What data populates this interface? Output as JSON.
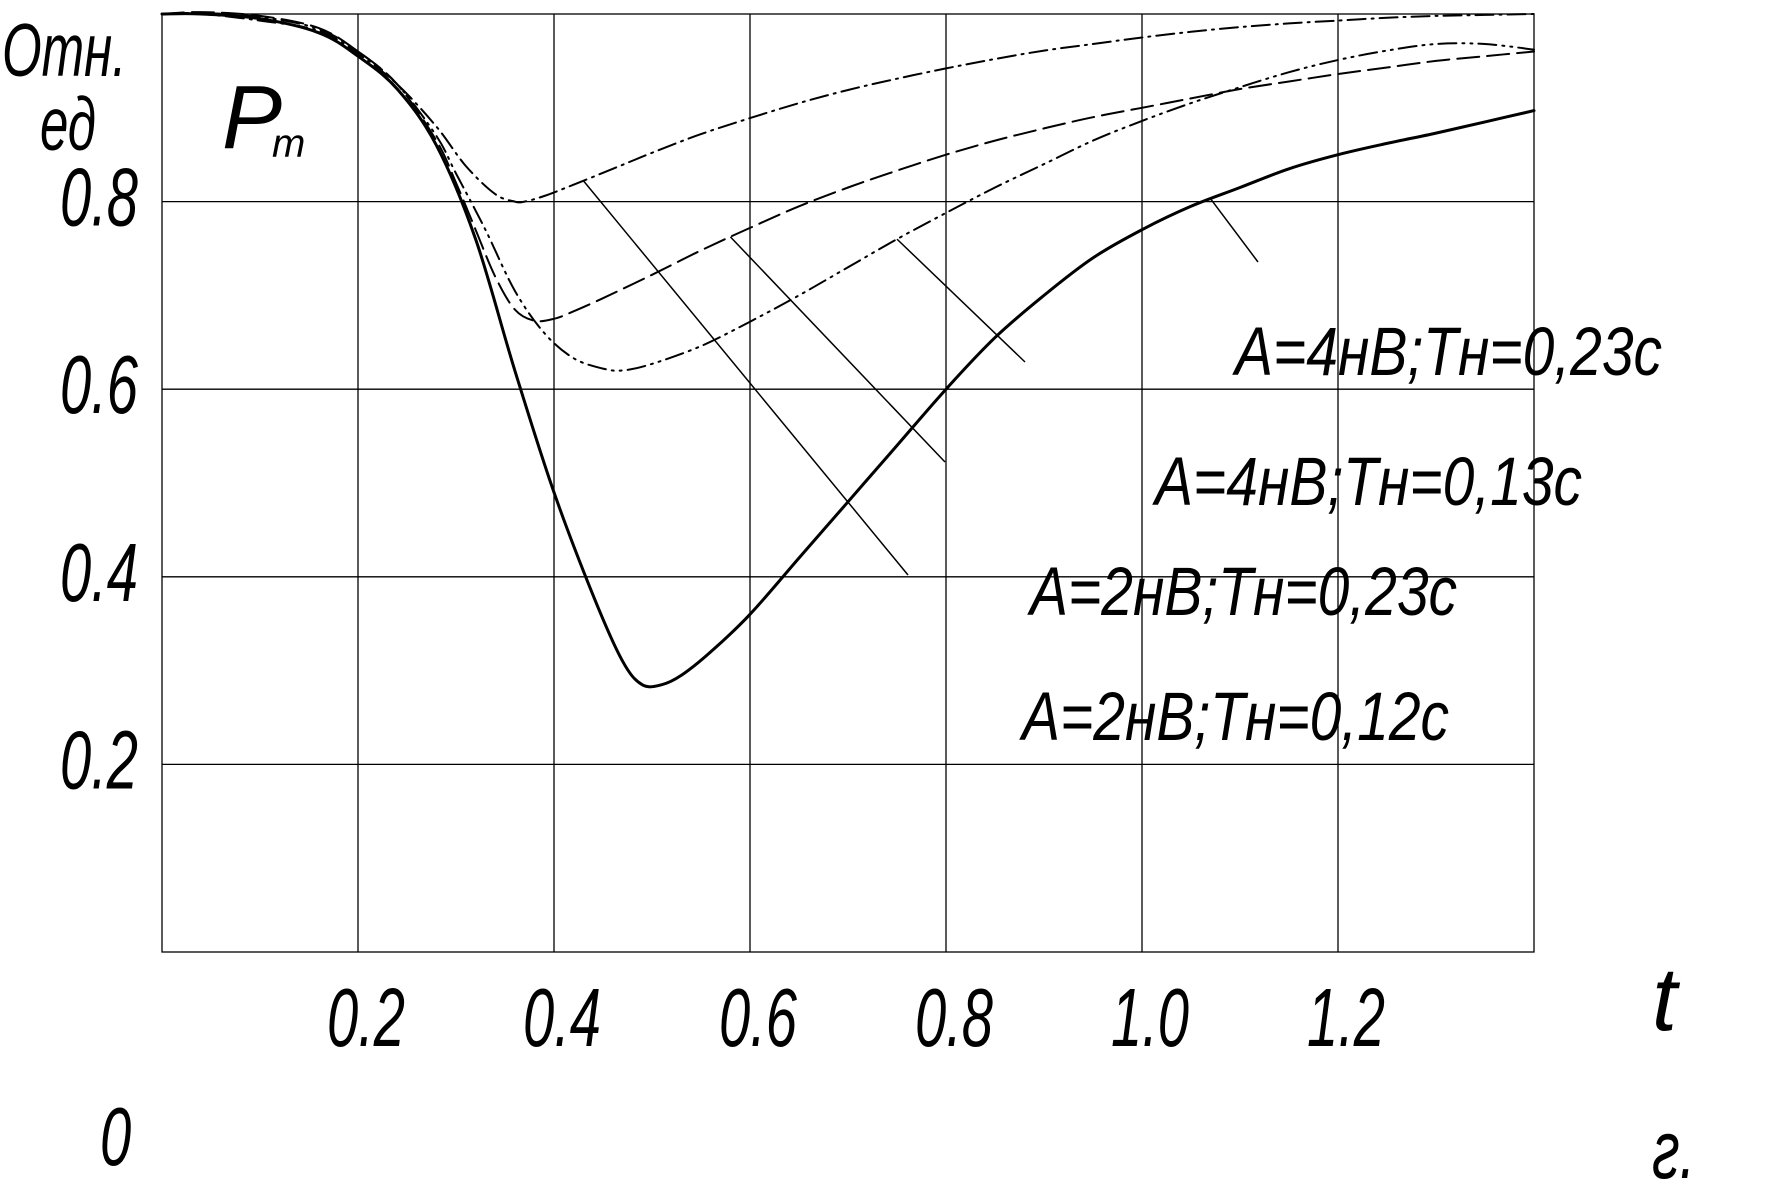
{
  "chart_data": {
    "type": "line",
    "ylabel_line1": "Отн.",
    "ylabel_line2": "ед",
    "title_main": "P",
    "title_sub": "т",
    "xlabel": "t",
    "xunit": "г.",
    "origin_label": "0",
    "xlim": [
      0,
      1.4
    ],
    "ylim": [
      0,
      1.0
    ],
    "grid": true,
    "x_ticks": [
      {
        "value": 0.2,
        "label": "0.2"
      },
      {
        "value": 0.4,
        "label": "0.4"
      },
      {
        "value": 0.6,
        "label": "0.6"
      },
      {
        "value": 0.8,
        "label": "0.8"
      },
      {
        "value": 1.0,
        "label": "1.0"
      },
      {
        "value": 1.2,
        "label": "1.2"
      }
    ],
    "y_ticks": [
      {
        "value": 0.2,
        "label": "0.2"
      },
      {
        "value": 0.4,
        "label": "0.4"
      },
      {
        "value": 0.6,
        "label": "0.6"
      },
      {
        "value": 0.8,
        "label": "0.8"
      }
    ],
    "series": [
      {
        "name": "A=2нВ;Tн=0,12с",
        "style": "solid",
        "x": [
          0,
          0.04,
          0.1,
          0.16,
          0.2,
          0.24,
          0.28,
          0.32,
          0.36,
          0.4,
          0.44,
          0.47,
          0.49,
          0.51,
          0.53,
          0.56,
          0.6,
          0.65,
          0.7,
          0.75,
          0.8,
          0.85,
          0.9,
          0.95,
          1.0,
          1.05,
          1.1,
          1.15,
          1.2,
          1.25,
          1.3,
          1.35,
          1.4
        ],
        "y": [
          1.0,
          1.0,
          0.995,
          0.98,
          0.955,
          0.92,
          0.86,
          0.76,
          0.62,
          0.49,
          0.38,
          0.31,
          0.285,
          0.285,
          0.295,
          0.32,
          0.36,
          0.42,
          0.48,
          0.54,
          0.6,
          0.655,
          0.7,
          0.74,
          0.77,
          0.795,
          0.815,
          0.835,
          0.85,
          0.862,
          0.873,
          0.885,
          0.897
        ]
      },
      {
        "name": "A=2нВ;Tн=0,23с",
        "style": "dashed",
        "x": [
          0,
          0.04,
          0.1,
          0.16,
          0.2,
          0.24,
          0.28,
          0.3,
          0.32,
          0.34,
          0.36,
          0.38,
          0.4,
          0.42,
          0.45,
          0.5,
          0.55,
          0.6,
          0.65,
          0.7,
          0.75,
          0.8,
          0.85,
          0.9,
          0.95,
          1.0,
          1.05,
          1.1,
          1.15,
          1.2,
          1.25,
          1.3,
          1.35,
          1.4
        ],
        "y": [
          1.0,
          1.002,
          0.998,
          0.985,
          0.96,
          0.925,
          0.865,
          0.82,
          0.77,
          0.72,
          0.685,
          0.673,
          0.675,
          0.683,
          0.697,
          0.722,
          0.748,
          0.772,
          0.795,
          0.815,
          0.833,
          0.85,
          0.865,
          0.878,
          0.89,
          0.9,
          0.91,
          0.92,
          0.928,
          0.936,
          0.943,
          0.95,
          0.955,
          0.96
        ]
      },
      {
        "name": "A=4нВ;Tн=0,13с",
        "style": "dashdotdot",
        "x": [
          0,
          0.04,
          0.1,
          0.16,
          0.2,
          0.24,
          0.28,
          0.3,
          0.33,
          0.36,
          0.39,
          0.42,
          0.45,
          0.47,
          0.5,
          0.55,
          0.6,
          0.65,
          0.7,
          0.75,
          0.8,
          0.85,
          0.9,
          0.95,
          1.0,
          1.05,
          1.1,
          1.15,
          1.2,
          1.25,
          1.3,
          1.35,
          1.4
        ],
        "y": [
          1.0,
          1.001,
          0.997,
          0.984,
          0.96,
          0.925,
          0.87,
          0.83,
          0.77,
          0.705,
          0.66,
          0.633,
          0.622,
          0.62,
          0.627,
          0.646,
          0.672,
          0.7,
          0.73,
          0.76,
          0.788,
          0.815,
          0.84,
          0.865,
          0.886,
          0.905,
          0.922,
          0.938,
          0.951,
          0.961,
          0.968,
          0.968,
          0.962
        ]
      },
      {
        "name": "A=4нВ;Tн=0,23с",
        "style": "dashdot",
        "x": [
          0,
          0.04,
          0.1,
          0.16,
          0.2,
          0.24,
          0.28,
          0.31,
          0.34,
          0.36,
          0.37,
          0.39,
          0.42,
          0.46,
          0.5,
          0.55,
          0.6,
          0.65,
          0.7,
          0.75,
          0.8,
          0.85,
          0.9,
          0.95,
          1.0,
          1.05,
          1.1,
          1.15,
          1.2,
          1.25,
          1.3,
          1.35,
          1.4
        ],
        "y": [
          1.0,
          1.0,
          0.993,
          0.982,
          0.958,
          0.925,
          0.88,
          0.838,
          0.808,
          0.8,
          0.8,
          0.806,
          0.818,
          0.835,
          0.852,
          0.872,
          0.889,
          0.905,
          0.919,
          0.931,
          0.942,
          0.952,
          0.961,
          0.968,
          0.975,
          0.981,
          0.986,
          0.99,
          0.993,
          0.996,
          0.998,
          0.999,
          1.0
        ]
      }
    ],
    "annotations": [
      {
        "text": "A=4нВ;Tн=0,23с",
        "series": "A=4нВ;Tн=0,23с"
      },
      {
        "text": "A=4нВ;Tн=0,13с",
        "series": "A=4нВ;Tн=0,13с"
      },
      {
        "text": "A=2нВ;Tн=0,23с",
        "series": "A=2нВ;Tн=0,23с"
      },
      {
        "text": "A=2нВ;Tн=0,12с",
        "series": "A=2нВ;Tн=0,12с"
      }
    ]
  }
}
